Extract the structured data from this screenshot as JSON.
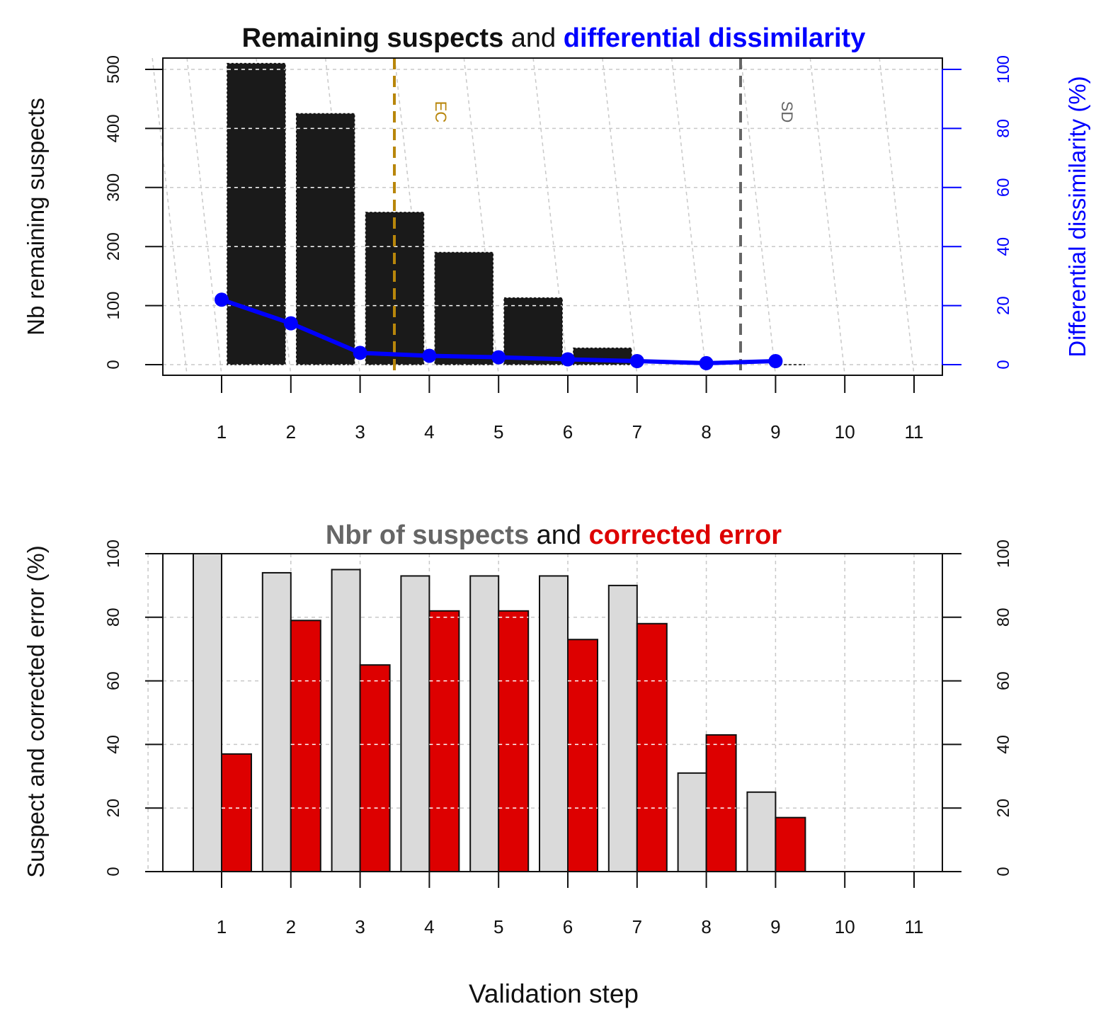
{
  "colors": {
    "bar_dark": "#1a1a1a",
    "line_blue": "#0000ff",
    "suspect_gray": "#dadada",
    "corrected_red": "#dd0000",
    "ec_line": "#b8860b",
    "sd_line": "#666666",
    "title_gray": "#666666",
    "grid": "#c8c8c8"
  },
  "shared": {
    "xlabel": "Validation step"
  },
  "chart_data": [
    {
      "type": "bar",
      "title_parts": [
        {
          "text": "Remaining suspects",
          "color": "#111111",
          "bold": true
        },
        {
          "text": " and ",
          "color": "#111111",
          "bold": false
        },
        {
          "text": "differential dissimilarity",
          "color": "#0000ff",
          "bold": true
        }
      ],
      "categories": [
        1,
        2,
        3,
        4,
        5,
        6,
        7,
        8,
        9,
        10,
        11
      ],
      "ylabel_left": "Nb remaining suspects",
      "ylabel_right": "Differential dissimilarity (%)",
      "ylim_left": [
        0,
        520
      ],
      "ylim_right": [
        0,
        100
      ],
      "yticks_left": [
        0,
        100,
        200,
        300,
        400,
        500
      ],
      "yticks_right": [
        0,
        20,
        40,
        60,
        80,
        100
      ],
      "grid": true,
      "series": [
        {
          "name": "Nb remaining suspects",
          "type": "bar",
          "axis": "left",
          "x": [
            2,
            3,
            4,
            5,
            6,
            7
          ],
          "values": [
            510,
            425,
            258,
            190,
            113,
            28
          ]
        },
        {
          "name": "Differential dissimilarity",
          "type": "line",
          "axis": "right",
          "x": [
            1,
            2,
            3,
            4,
            5,
            6,
            7,
            8,
            9
          ],
          "values": [
            22,
            14,
            4,
            3,
            2.5,
            1.8,
            1.2,
            0.5,
            1.2
          ]
        }
      ],
      "vlines": [
        {
          "label": "EC",
          "x": 3.5,
          "color": "#b8860b"
        },
        {
          "label": "SD",
          "x": 8.5,
          "color": "#666666"
        }
      ]
    },
    {
      "type": "bar",
      "title_parts": [
        {
          "text": "Nbr of suspects",
          "color": "#666666",
          "bold": true
        },
        {
          "text": " and ",
          "color": "#111111",
          "bold": false
        },
        {
          "text": "corrected error",
          "color": "#dd0000",
          "bold": true
        }
      ],
      "categories": [
        1,
        2,
        3,
        4,
        5,
        6,
        7,
        8,
        9,
        10,
        11
      ],
      "ylabel_left": "Suspect and corrected error (%)",
      "ylim": [
        0,
        100
      ],
      "yticks_left": [
        0,
        20,
        40,
        60,
        80,
        100
      ],
      "yticks_right": [
        0,
        20,
        40,
        60,
        80,
        100
      ],
      "grid": true,
      "series": [
        {
          "name": "Nbr of suspects",
          "type": "bar",
          "x": [
            1,
            2,
            3,
            4,
            5,
            6,
            7,
            8,
            9
          ],
          "values": [
            100,
            94,
            95,
            93,
            93,
            93,
            90,
            31,
            25
          ]
        },
        {
          "name": "corrected error",
          "type": "bar",
          "x": [
            1,
            2,
            3,
            4,
            5,
            6,
            7,
            8,
            9
          ],
          "values": [
            37,
            79,
            65,
            82,
            82,
            73,
            78,
            43,
            17
          ]
        }
      ]
    }
  ]
}
